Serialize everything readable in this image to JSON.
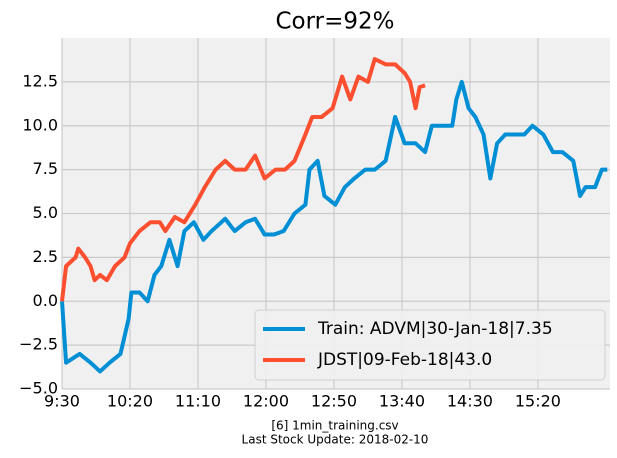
{
  "chart_data": {
    "type": "line",
    "title": "Corr=92%",
    "footnotes": [
      "[6] 1min_training.csv",
      "Last Stock Update: 2018-02-10"
    ],
    "xlim": [
      0,
      403
    ],
    "xticks": [
      {
        "value": 0,
        "label": "9:30"
      },
      {
        "value": 50,
        "label": "10:20"
      },
      {
        "value": 100,
        "label": "11:10"
      },
      {
        "value": 150,
        "label": "12:00"
      },
      {
        "value": 200,
        "label": "12:50"
      },
      {
        "value": 250,
        "label": "13:40"
      },
      {
        "value": 300,
        "label": "14:30"
      },
      {
        "value": 350,
        "label": "15:20"
      }
    ],
    "ylim": [
      -5,
      15
    ],
    "yticks": [
      {
        "value": -5,
        "label": "−5.0"
      },
      {
        "value": -2.5,
        "label": "−2.5"
      },
      {
        "value": 0,
        "label": "0.0"
      },
      {
        "value": 2.5,
        "label": "2.5"
      },
      {
        "value": 5,
        "label": "5.0"
      },
      {
        "value": 7.5,
        "label": "7.5"
      },
      {
        "value": 10,
        "label": "10.0"
      },
      {
        "value": 12.5,
        "label": "12.5"
      }
    ],
    "grid": true,
    "legend": "lower right",
    "series": [
      {
        "name": "Train: ADVM|30-Jan-18|7.35",
        "color": "#008fd5",
        "x": [
          0,
          3,
          13,
          21,
          28,
          35,
          43,
          49,
          51,
          57,
          63,
          68,
          73,
          79,
          85,
          90,
          97,
          104,
          110,
          120,
          127,
          135,
          142,
          149,
          156,
          163,
          171,
          179,
          182,
          188,
          193,
          201,
          208,
          215,
          223,
          230,
          238,
          245,
          252,
          260,
          267,
          272,
          279,
          287,
          290,
          294,
          299,
          304,
          310,
          315,
          320,
          326,
          333,
          340,
          346,
          354,
          361,
          368,
          376,
          381,
          385,
          392,
          397,
          401
        ],
        "values": [
          0,
          -3.5,
          -3,
          -3.5,
          -4,
          -3.5,
          -3,
          -1,
          0.5,
          0.5,
          0,
          1.5,
          2,
          3.5,
          2,
          4,
          4.5,
          3.5,
          4,
          4.7,
          4,
          4.5,
          4.7,
          3.8,
          3.8,
          4,
          5,
          5.5,
          7.5,
          8,
          6,
          5.5,
          6.5,
          7,
          7.5,
          7.5,
          8,
          10.5,
          9,
          9,
          8.5,
          10,
          10,
          10,
          11.5,
          12.5,
          11,
          10.5,
          9.5,
          7,
          9,
          9.5,
          9.5,
          9.5,
          10,
          9.5,
          8.5,
          8.5,
          8,
          6,
          6.5,
          6.5,
          7.5,
          7.5
        ]
      },
      {
        "name": "JDST|09-Feb-18|43.0",
        "color": "#fc4f30",
        "x": [
          0,
          3,
          10,
          12,
          17,
          21,
          24,
          28,
          33,
          39,
          46,
          50,
          57,
          65,
          72,
          76,
          83,
          90,
          98,
          105,
          113,
          120,
          127,
          135,
          142,
          149,
          157,
          164,
          171,
          179,
          184,
          191,
          199,
          206,
          212,
          218,
          225,
          230,
          238,
          245,
          252,
          256,
          260,
          263,
          267
        ],
        "values": [
          0,
          2,
          2.5,
          3,
          2.5,
          2,
          1.2,
          1.5,
          1.2,
          2,
          2.5,
          3.3,
          4,
          4.5,
          4.5,
          4,
          4.8,
          4.5,
          5.5,
          6.5,
          7.5,
          8,
          7.5,
          7.5,
          8.3,
          7,
          7.5,
          7.5,
          8,
          9.5,
          10.5,
          10.5,
          11,
          12.8,
          11.5,
          12.8,
          12.5,
          13.8,
          13.5,
          13.5,
          13,
          12.5,
          11,
          12.2,
          12.3
        ]
      }
    ]
  }
}
